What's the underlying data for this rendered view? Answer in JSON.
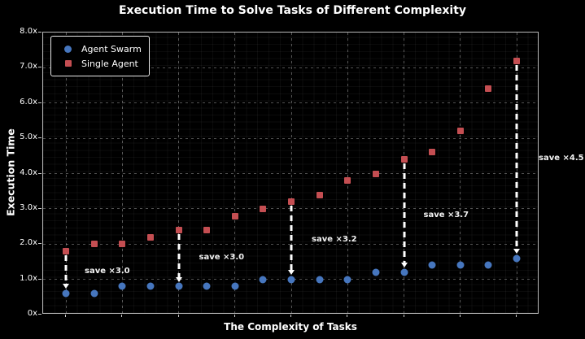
{
  "title": "Execution Time to Solve Tasks of Different Complexity",
  "colors": {
    "background": "#000000",
    "agent_swarm": "#4676BE",
    "single_agent": "#C44E52",
    "grid": "#FFFFFF",
    "spine": "#B9B9B9",
    "arrow": "#FFFFFF",
    "text": "#FFFFFF"
  },
  "legend": {
    "position": "upper left",
    "items": [
      {
        "label": "Agent Swarm",
        "marker": "circle"
      },
      {
        "label": "Single Agent",
        "marker": "square"
      }
    ]
  },
  "chart_data": {
    "type": "scatter",
    "title": "Execution Time to Solve Tasks of Different Complexity",
    "xlabel": "The Complexity of Tasks",
    "ylabel": "Execution Time",
    "x": [
      1,
      2,
      3,
      4,
      5,
      6,
      7,
      8,
      9,
      10,
      11,
      12,
      13,
      14,
      15,
      16,
      17
    ],
    "series": [
      {
        "name": "Agent Swarm",
        "marker": "circle",
        "color": "#4676BE",
        "values": [
          0.6,
          0.6,
          0.8,
          0.8,
          0.8,
          0.8,
          0.8,
          1.0,
          1.0,
          1.0,
          1.0,
          1.2,
          1.2,
          1.4,
          1.4,
          1.4,
          1.6
        ]
      },
      {
        "name": "Single Agent",
        "marker": "square",
        "color": "#C44E52",
        "values": [
          1.8,
          2.0,
          2.0,
          2.2,
          2.4,
          2.4,
          2.8,
          3.0,
          3.2,
          3.4,
          3.8,
          4.0,
          4.4,
          4.6,
          5.2,
          6.4,
          7.2
        ]
      }
    ],
    "ylim": [
      0,
      8
    ],
    "yticks": [
      {
        "value": 0,
        "label": "0x"
      },
      {
        "value": 1,
        "label": "1.0x"
      },
      {
        "value": 2,
        "label": "2.0x"
      },
      {
        "value": 3,
        "label": "3.0x"
      },
      {
        "value": 4,
        "label": "4.0x"
      },
      {
        "value": 5,
        "label": "5.0x"
      },
      {
        "value": 6,
        "label": "6.0x"
      },
      {
        "value": 7,
        "label": "7.0x"
      },
      {
        "value": 8,
        "label": "8.0x"
      }
    ],
    "xtick_labels_shown": false,
    "x_gridline_indices": [
      0,
      2,
      4,
      6,
      8,
      10,
      12,
      14,
      16
    ],
    "grid": true,
    "legend_position": "upper left",
    "annotations": [
      {
        "x_index": 0,
        "label": "save ×3.0"
      },
      {
        "x_index": 4,
        "label": "save ×3.0"
      },
      {
        "x_index": 8,
        "label": "save ×3.2"
      },
      {
        "x_index": 12,
        "label": "save ×3.7"
      },
      {
        "x_index": 16,
        "label": "save ×4.5"
      }
    ]
  }
}
